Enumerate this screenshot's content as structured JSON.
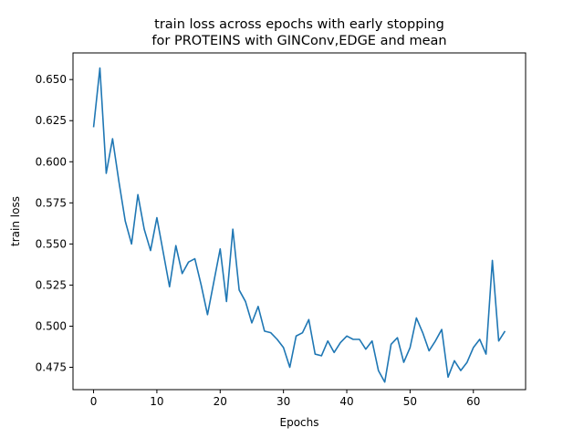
{
  "chart_data": {
    "type": "line",
    "title": "train loss across epochs with early stopping",
    "subtitle": "for PROTEINS with GINConv,EDGE and mean",
    "xlabel": "Epochs",
    "ylabel": "train loss",
    "xlim": [
      -3.25,
      68.25
    ],
    "ylim": [
      0.4614,
      0.6662
    ],
    "xticks": [
      0,
      10,
      20,
      30,
      40,
      50,
      60
    ],
    "xtick_labels": [
      "0",
      "10",
      "20",
      "30",
      "40",
      "50",
      "60"
    ],
    "yticks": [
      0.475,
      0.5,
      0.525,
      0.55,
      0.575,
      0.6,
      0.625,
      0.65
    ],
    "ytick_labels": [
      "0.475",
      "0.500",
      "0.525",
      "0.550",
      "0.575",
      "0.600",
      "0.625",
      "0.650"
    ],
    "grid": false,
    "legend": "none",
    "series": [
      {
        "color": "#1f77b4",
        "x": [
          0,
          1,
          2,
          3,
          4,
          5,
          6,
          7,
          8,
          9,
          10,
          11,
          12,
          13,
          14,
          15,
          16,
          17,
          18,
          19,
          20,
          21,
          22,
          23,
          24,
          25,
          26,
          27,
          28,
          29,
          30,
          31,
          32,
          33,
          34,
          35,
          36,
          37,
          38,
          39,
          40,
          41,
          42,
          43,
          44,
          45,
          46,
          47,
          48,
          49,
          50,
          51,
          52,
          53,
          54,
          55,
          56,
          57,
          58,
          59,
          60,
          61,
          62,
          63,
          64,
          65
        ],
        "values": [
          0.621,
          0.657,
          0.593,
          0.614,
          0.588,
          0.564,
          0.55,
          0.58,
          0.559,
          0.546,
          0.566,
          0.545,
          0.524,
          0.549,
          0.532,
          0.539,
          0.541,
          0.525,
          0.507,
          0.527,
          0.547,
          0.515,
          0.559,
          0.522,
          0.515,
          0.502,
          0.512,
          0.497,
          0.496,
          0.492,
          0.487,
          0.475,
          0.494,
          0.496,
          0.504,
          0.483,
          0.482,
          0.491,
          0.484,
          0.49,
          0.494,
          0.492,
          0.492,
          0.486,
          0.491,
          0.473,
          0.466,
          0.489,
          0.493,
          0.478,
          0.487,
          0.505,
          0.496,
          0.485,
          0.491,
          0.498,
          0.469,
          0.479,
          0.473,
          0.478,
          0.487,
          0.492,
          0.483,
          0.54,
          0.491,
          0.497
        ]
      }
    ]
  }
}
